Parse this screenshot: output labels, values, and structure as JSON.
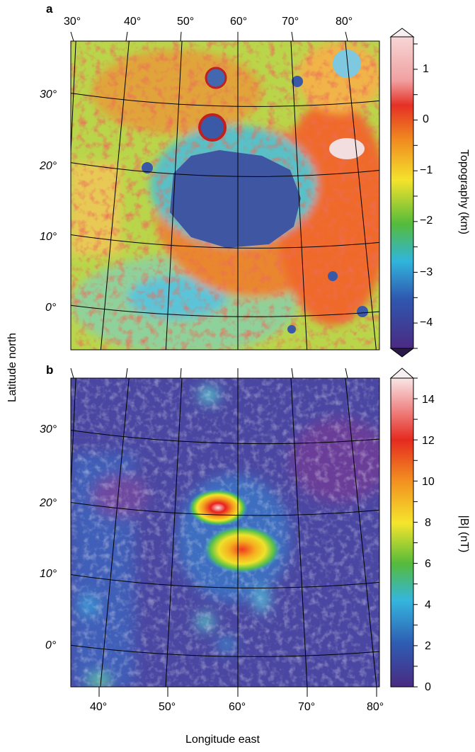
{
  "panel_a": {
    "letter": "a",
    "top_longitude_labels": [
      "30°",
      "40°",
      "50°",
      "60°",
      "70°",
      "80°"
    ],
    "latitude_labels": [
      "30°",
      "20°",
      "10°",
      "0°"
    ],
    "colorbar": {
      "title": "Topography (km)",
      "ticks": [
        "1",
        "0",
        "−1",
        "−2",
        "−3",
        "−4"
      ],
      "range": [
        -4.6,
        1.5
      ]
    }
  },
  "panel_b": {
    "letter": "b",
    "latitude_labels": [
      "30°",
      "20°",
      "10°",
      "0°"
    ],
    "bottom_longitude_labels": [
      "40°",
      "50°",
      "60°",
      "70°",
      "80°"
    ],
    "colorbar": {
      "title": "|B| (nT)",
      "ticks": [
        "14",
        "12",
        "10",
        "8",
        "6",
        "4",
        "2",
        "0"
      ],
      "range": [
        0,
        15
      ]
    }
  },
  "y_axis_title": "Latitude north",
  "x_axis_title": "Longitude east"
}
